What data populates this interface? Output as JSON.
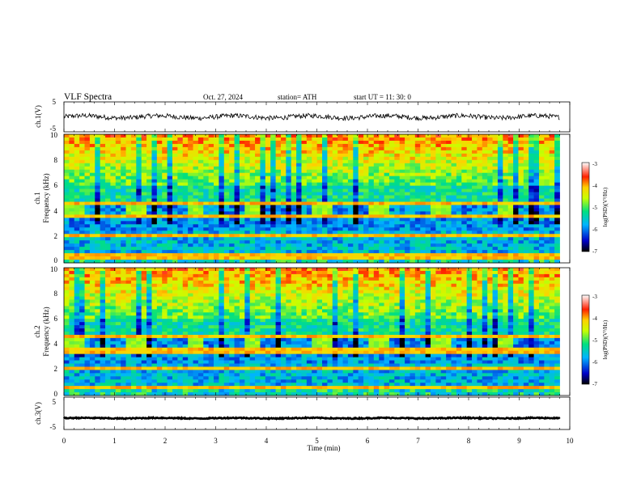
{
  "header": {
    "title": "VLF  Spectra",
    "date": "Oct. 27, 2024",
    "station": "station= ATH",
    "start": "start  UT  =    11: 30: 0"
  },
  "chart_data": [
    {
      "type": "line",
      "name": "ch1-waveform",
      "ylabel": "ch.1(V)",
      "yticks": [
        "5",
        "-5"
      ],
      "ylim": [
        -5,
        5
      ],
      "xlim": [
        0,
        10
      ],
      "approx_level": 0,
      "data_end_min": 9.8
    },
    {
      "type": "heatmap",
      "name": "ch1-spectrogram",
      "ylabel_top": "ch.1",
      "ylabel": "Frequency  (kHz)",
      "yticks": [
        "0",
        "2",
        "4",
        "6",
        "8",
        "10"
      ],
      "ylim": [
        0,
        10
      ],
      "xlim": [
        0,
        10
      ],
      "data_end_min": 9.8,
      "colorbar": {
        "label": "log(PSD)(V²/Hz)",
        "ticks": [
          "-3",
          "-4",
          "-5",
          "-6",
          "-7"
        ],
        "range": [
          -7,
          -3
        ]
      },
      "bursts_min": [
        0.2,
        1.45,
        2.6,
        3.75,
        5.1,
        6.25,
        7.45,
        8.75
      ],
      "lines_khz": [
        0.5,
        2.2,
        3.6,
        4.7
      ]
    },
    {
      "type": "heatmap",
      "name": "ch2-spectrogram",
      "ylabel_top": "ch.2",
      "ylabel": "Frequency  (kHz)",
      "yticks": [
        "0",
        "2",
        "4",
        "6",
        "8",
        "10"
      ],
      "ylim": [
        0,
        10
      ],
      "xlim": [
        0,
        10
      ],
      "data_end_min": 9.8,
      "colorbar": {
        "label": "log(PSD)(V²/Hz)",
        "ticks": [
          "-3",
          "-4",
          "-5",
          "-6",
          "-7"
        ],
        "range": [
          -7,
          -3
        ]
      },
      "bursts_min": [
        0.2,
        1.45,
        2.6,
        3.75,
        5.1,
        6.25,
        7.45,
        8.75
      ],
      "lines_khz": [
        0.6,
        2.1,
        3.5,
        4.6
      ]
    },
    {
      "type": "line",
      "name": "ch3-waveform",
      "ylabel": "ch.3(V)",
      "yticks": [
        "5",
        "-5"
      ],
      "ylim": [
        -5,
        5
      ],
      "xlim": [
        0,
        10
      ],
      "approx_level": -1.5,
      "data_end_min": 9.8,
      "xlabel": "Time  (min)",
      "xticks": [
        "0",
        "1",
        "2",
        "3",
        "4",
        "5",
        "6",
        "7",
        "8",
        "9",
        "10"
      ]
    }
  ]
}
